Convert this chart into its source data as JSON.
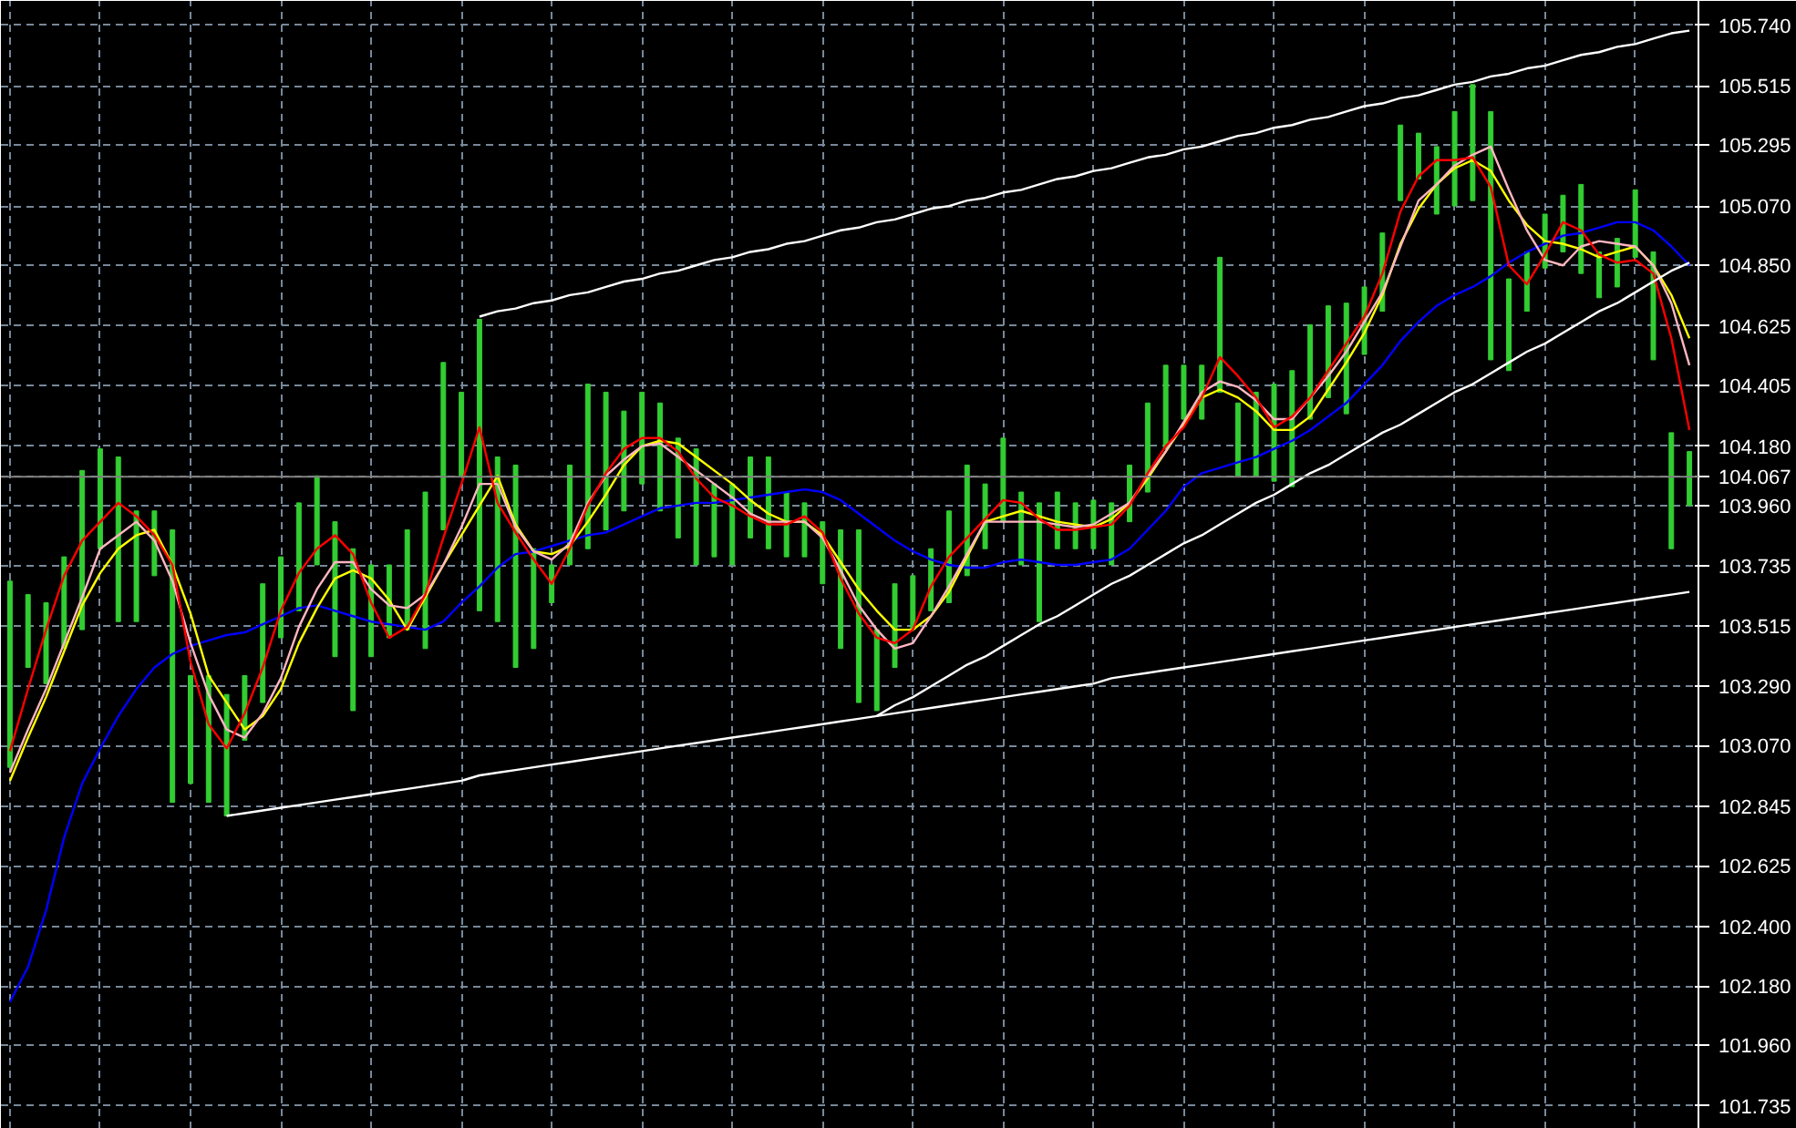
{
  "chart_data": {
    "type": "bar",
    "categories": [
      null,
      null,
      null,
      null,
      null,
      null,
      null,
      null,
      null,
      null,
      null,
      null,
      null,
      null,
      null,
      null,
      null,
      null,
      null,
      null,
      null,
      null,
      null,
      null,
      null,
      null,
      null,
      null,
      null,
      null,
      null,
      null,
      null,
      null,
      null,
      null,
      null,
      null,
      null,
      null,
      null,
      null,
      null,
      null,
      null,
      null,
      null,
      null,
      null,
      null,
      null,
      null,
      null,
      null,
      null,
      null,
      null,
      null,
      null,
      null,
      null,
      null,
      null,
      null,
      null,
      null,
      null,
      null,
      null,
      null,
      null,
      null,
      null,
      null,
      null,
      null,
      null,
      null,
      null,
      null,
      null,
      null,
      null,
      null,
      null,
      null,
      null,
      null,
      null,
      null,
      null,
      null,
      null,
      null
    ],
    "series": [
      {
        "color": "#32cd32",
        "base": [
          102.99,
          103.36,
          103.3,
          103.43,
          103.5,
          103.8,
          103.53,
          103.53,
          103.7,
          102.86,
          102.93,
          102.86,
          102.81,
          103.09,
          103.23,
          103.47,
          103.57,
          103.74,
          103.4,
          103.2,
          103.4,
          103.47,
          103.5,
          103.43,
          103.87,
          104.07,
          103.57,
          103.53,
          103.36,
          103.43,
          103.6,
          103.74,
          103.8,
          103.87,
          103.94,
          104.04,
          103.94,
          103.84,
          103.74,
          103.77,
          103.74,
          103.84,
          103.8,
          103.77,
          103.77,
          103.67,
          103.43,
          103.23,
          103.2,
          103.36,
          103.5,
          103.57,
          103.6,
          103.7,
          103.8,
          103.9,
          103.74,
          103.53,
          103.8,
          103.8,
          103.8,
          103.74,
          103.9,
          104.01,
          104.17,
          104.28,
          104.28,
          104.38,
          104.07,
          104.07,
          104.05,
          104.03,
          104.28,
          104.36,
          104.3,
          104.52,
          104.68,
          105.09,
          105.17,
          105.04,
          105.07,
          105.09,
          104.5,
          104.46,
          104.68,
          104.84,
          104.9,
          104.82,
          104.73,
          104.77,
          104.88,
          104.5,
          103.8,
          103.96
        ],
        "values": [
          0.69,
          0.27,
          0.3,
          0.34,
          0.59,
          0.37,
          0.61,
          0.41,
          0.24,
          1.01,
          0.4,
          0.47,
          0.45,
          0.24,
          0.44,
          0.3,
          0.4,
          0.33,
          0.5,
          0.6,
          0.34,
          0.27,
          0.37,
          0.58,
          0.62,
          0.31,
          1.08,
          0.61,
          0.75,
          0.37,
          0.14,
          0.37,
          0.61,
          0.51,
          0.37,
          0.34,
          0.4,
          0.37,
          0.43,
          0.27,
          0.3,
          0.3,
          0.34,
          0.24,
          0.2,
          0.23,
          0.44,
          0.64,
          0.3,
          0.31,
          0.2,
          0.23,
          0.34,
          0.41,
          0.24,
          0.31,
          0.27,
          0.44,
          0.21,
          0.17,
          0.18,
          0.23,
          0.21,
          0.33,
          0.31,
          0.2,
          0.2,
          0.5,
          0.27,
          0.31,
          0.36,
          0.43,
          0.35,
          0.34,
          0.41,
          0.25,
          0.29,
          0.28,
          0.17,
          0.25,
          0.35,
          0.43,
          0.92,
          0.34,
          0.22,
          0.2,
          0.21,
          0.33,
          0.17,
          0.18,
          0.25,
          0.4,
          0.43,
          0.2
        ]
      },
      {
        "type": "line",
        "color": "#0000ff",
        "values": [
          102.12,
          102.25,
          102.46,
          102.73,
          102.93,
          103.06,
          103.18,
          103.28,
          103.36,
          103.41,
          103.44,
          103.46,
          103.48,
          103.49,
          103.52,
          103.55,
          103.58,
          103.59,
          103.57,
          103.55,
          103.53,
          103.52,
          103.51,
          103.5,
          103.53,
          103.6,
          103.66,
          103.73,
          103.78,
          103.79,
          103.81,
          103.83,
          103.85,
          103.86,
          103.89,
          103.92,
          103.95,
          103.96,
          103.97,
          103.97,
          103.98,
          103.99,
          104.0,
          104.01,
          104.02,
          104.01,
          103.98,
          103.93,
          103.88,
          103.83,
          103.79,
          103.76,
          103.74,
          103.73,
          103.73,
          103.75,
          103.76,
          103.75,
          103.74,
          103.74,
          103.75,
          103.76,
          103.8,
          103.87,
          103.94,
          104.03,
          104.08,
          104.1,
          104.12,
          104.14,
          104.17,
          104.2,
          104.24,
          104.29,
          104.34,
          104.41,
          104.48,
          104.57,
          104.64,
          104.7,
          104.74,
          104.77,
          104.81,
          104.86,
          104.9,
          104.93,
          104.96,
          104.97,
          104.99,
          105.01,
          105.01,
          104.98,
          104.92,
          104.85
        ]
      },
      {
        "type": "line",
        "color": "#ffff00",
        "values": [
          102.94,
          103.1,
          103.25,
          103.42,
          103.59,
          103.71,
          103.8,
          103.85,
          103.87,
          103.74,
          103.56,
          103.33,
          103.23,
          103.13,
          103.18,
          103.28,
          103.45,
          103.58,
          103.69,
          103.72,
          103.69,
          103.61,
          103.5,
          103.62,
          103.74,
          103.85,
          103.96,
          104.07,
          103.89,
          103.79,
          103.78,
          103.81,
          103.9,
          104.0,
          104.11,
          104.18,
          104.2,
          104.19,
          104.14,
          104.09,
          104.04,
          103.98,
          103.93,
          103.9,
          103.9,
          103.85,
          103.75,
          103.65,
          103.57,
          103.5,
          103.5,
          103.55,
          103.64,
          103.77,
          103.9,
          103.92,
          103.94,
          103.92,
          103.9,
          103.89,
          103.88,
          103.91,
          103.97,
          104.06,
          104.16,
          104.26,
          104.36,
          104.39,
          104.36,
          104.31,
          104.24,
          104.24,
          104.29,
          104.39,
          104.49,
          104.6,
          104.74,
          104.93,
          105.06,
          105.15,
          105.21,
          105.24,
          105.2,
          105.09,
          105.0,
          104.94,
          104.93,
          104.91,
          104.88,
          104.9,
          104.92,
          104.85,
          104.74,
          104.58
        ]
      },
      {
        "type": "line",
        "color": "#ffb6c1",
        "values": [
          102.97,
          103.13,
          103.28,
          103.45,
          103.62,
          103.8,
          103.85,
          103.9,
          103.83,
          103.68,
          103.45,
          103.26,
          103.13,
          103.1,
          103.19,
          103.32,
          103.51,
          103.65,
          103.75,
          103.75,
          103.65,
          103.59,
          103.58,
          103.63,
          103.74,
          103.88,
          104.04,
          104.04,
          103.88,
          103.79,
          103.76,
          103.82,
          103.97,
          104.07,
          104.13,
          104.18,
          104.19,
          104.14,
          104.09,
          104.04,
          103.99,
          103.93,
          103.9,
          103.9,
          103.9,
          103.84,
          103.72,
          103.59,
          103.5,
          103.43,
          103.45,
          103.55,
          103.66,
          103.78,
          103.9,
          103.9,
          103.9,
          103.9,
          103.89,
          103.88,
          103.89,
          103.93,
          103.97,
          104.07,
          104.16,
          104.27,
          104.38,
          104.42,
          104.4,
          104.35,
          104.28,
          104.28,
          104.36,
          104.44,
          104.53,
          104.64,
          104.75,
          104.92,
          105.09,
          105.15,
          105.22,
          105.26,
          105.29,
          105.13,
          104.98,
          104.87,
          104.85,
          104.92,
          104.94,
          104.93,
          104.92,
          104.85,
          104.71,
          104.48
        ]
      },
      {
        "type": "line",
        "color": "#ff0000",
        "values": [
          103.05,
          103.28,
          103.5,
          103.7,
          103.83,
          103.9,
          103.97,
          103.92,
          103.85,
          103.74,
          103.38,
          103.15,
          103.06,
          103.19,
          103.36,
          103.57,
          103.71,
          103.8,
          103.85,
          103.78,
          103.6,
          103.47,
          103.51,
          103.63,
          103.84,
          104.04,
          104.25,
          103.97,
          103.86,
          103.76,
          103.67,
          103.8,
          103.96,
          104.08,
          104.17,
          104.21,
          104.21,
          104.16,
          104.06,
          103.99,
          103.96,
          103.92,
          103.89,
          103.89,
          103.92,
          103.86,
          103.69,
          103.56,
          103.47,
          103.45,
          103.5,
          103.66,
          103.77,
          103.84,
          103.91,
          103.98,
          103.97,
          103.91,
          103.87,
          103.87,
          103.88,
          103.89,
          103.96,
          104.08,
          104.18,
          104.25,
          104.36,
          104.51,
          104.44,
          104.36,
          104.25,
          104.29,
          104.36,
          104.46,
          104.56,
          104.66,
          104.82,
          105.05,
          105.18,
          105.24,
          105.24,
          105.25,
          105.14,
          104.85,
          104.78,
          104.89,
          105.01,
          104.98,
          104.89,
          104.86,
          104.87,
          104.82,
          104.58,
          104.24
        ]
      },
      {
        "type": "line",
        "color": "#ffffff",
        "values": [
          null,
          null,
          null,
          null,
          null,
          null,
          null,
          null,
          null,
          null,
          null,
          null,
          102.81,
          102.82,
          102.83,
          102.84,
          102.85,
          102.86,
          102.87,
          102.88,
          102.89,
          102.9,
          102.91,
          102.92,
          102.93,
          102.94,
          102.96,
          102.97,
          102.98,
          102.99,
          103.0,
          103.01,
          103.02,
          103.03,
          103.04,
          103.05,
          103.06,
          103.07,
          103.08,
          103.09,
          103.1,
          103.11,
          103.12,
          103.13,
          103.14,
          103.15,
          103.16,
          103.17,
          103.18,
          103.19,
          103.2,
          103.21,
          103.22,
          103.23,
          103.24,
          103.25,
          103.26,
          103.27,
          103.28,
          103.29,
          103.3,
          103.32,
          103.33,
          103.34,
          103.35,
          103.36,
          103.37,
          103.38,
          103.39,
          103.4,
          103.41,
          103.42,
          103.43,
          103.44,
          103.45,
          103.46,
          103.47,
          103.48,
          103.49,
          103.5,
          103.51,
          103.52,
          103.53,
          103.54,
          103.55,
          103.56,
          103.57,
          103.58,
          103.59,
          103.6,
          103.61,
          103.62,
          103.63,
          103.64
        ]
      },
      {
        "type": "line",
        "color": "#ffffff",
        "values": [
          null,
          null,
          null,
          null,
          null,
          null,
          null,
          null,
          null,
          null,
          null,
          null,
          null,
          null,
          null,
          null,
          null,
          null,
          null,
          null,
          null,
          null,
          null,
          null,
          null,
          null,
          null,
          null,
          null,
          null,
          null,
          null,
          null,
          null,
          null,
          null,
          null,
          null,
          null,
          null,
          null,
          null,
          null,
          null,
          null,
          null,
          null,
          null,
          103.18,
          103.22,
          103.25,
          103.29,
          103.33,
          103.37,
          103.4,
          103.44,
          103.48,
          103.52,
          103.55,
          103.59,
          103.63,
          103.67,
          103.7,
          103.74,
          103.78,
          103.82,
          103.85,
          103.89,
          103.93,
          103.97,
          104.0,
          104.04,
          104.08,
          104.11,
          104.15,
          104.19,
          104.23,
          104.26,
          104.3,
          104.34,
          104.38,
          104.41,
          104.45,
          104.49,
          104.53,
          104.56,
          104.6,
          104.64,
          104.68,
          104.71,
          104.75,
          104.79,
          104.83,
          104.86
        ]
      },
      {
        "type": "line",
        "color": "#ffffff",
        "values": [
          null,
          null,
          null,
          null,
          null,
          null,
          null,
          null,
          null,
          null,
          null,
          null,
          null,
          null,
          null,
          null,
          null,
          null,
          null,
          null,
          null,
          null,
          null,
          null,
          null,
          null,
          104.66,
          104.68,
          104.69,
          104.71,
          104.72,
          104.74,
          104.75,
          104.77,
          104.79,
          104.8,
          104.82,
          104.83,
          104.85,
          104.87,
          104.88,
          104.9,
          104.91,
          104.93,
          104.94,
          104.96,
          104.98,
          104.99,
          105.01,
          105.02,
          105.04,
          105.06,
          105.07,
          105.09,
          105.1,
          105.12,
          105.13,
          105.15,
          105.17,
          105.18,
          105.2,
          105.21,
          105.23,
          105.25,
          105.26,
          105.28,
          105.29,
          105.31,
          105.33,
          105.34,
          105.36,
          105.37,
          105.39,
          105.4,
          105.42,
          105.44,
          105.45,
          105.47,
          105.48,
          105.5,
          105.52,
          105.53,
          105.55,
          105.56,
          105.58,
          105.59,
          105.61,
          105.63,
          105.64,
          105.66,
          105.67,
          105.69,
          105.71,
          105.72
        ]
      }
    ],
    "ylim": [
      101.65,
      105.83
    ],
    "yticks": [
      {
        "value": 105.74,
        "label": "105.740"
      },
      {
        "value": 105.515,
        "label": "105.515"
      },
      {
        "value": 105.295,
        "label": "105.295"
      },
      {
        "value": 105.07,
        "label": "105.070"
      },
      {
        "value": 104.85,
        "label": "104.850"
      },
      {
        "value": 104.625,
        "label": "104.625"
      },
      {
        "value": 104.405,
        "label": "104.405"
      },
      {
        "value": 104.18,
        "label": "104.180"
      },
      {
        "value": 103.96,
        "label": "103.960"
      },
      {
        "value": 103.735,
        "label": "103.735"
      },
      {
        "value": 103.515,
        "label": "103.515"
      },
      {
        "value": 103.29,
        "label": "103.290"
      },
      {
        "value": 103.07,
        "label": "103.070"
      },
      {
        "value": 102.845,
        "label": "102.845"
      },
      {
        "value": 102.625,
        "label": "102.625"
      },
      {
        "value": 102.4,
        "label": "102.400"
      },
      {
        "value": 102.18,
        "label": "102.180"
      },
      {
        "value": 101.96,
        "label": "101.960"
      },
      {
        "value": 101.735,
        "label": "101.735"
      }
    ],
    "ref_lines": [
      {
        "axis": "y",
        "value": 104.067,
        "label": "104.067",
        "color": "#808080"
      }
    ],
    "grid": true,
    "tick_labels": "y"
  }
}
